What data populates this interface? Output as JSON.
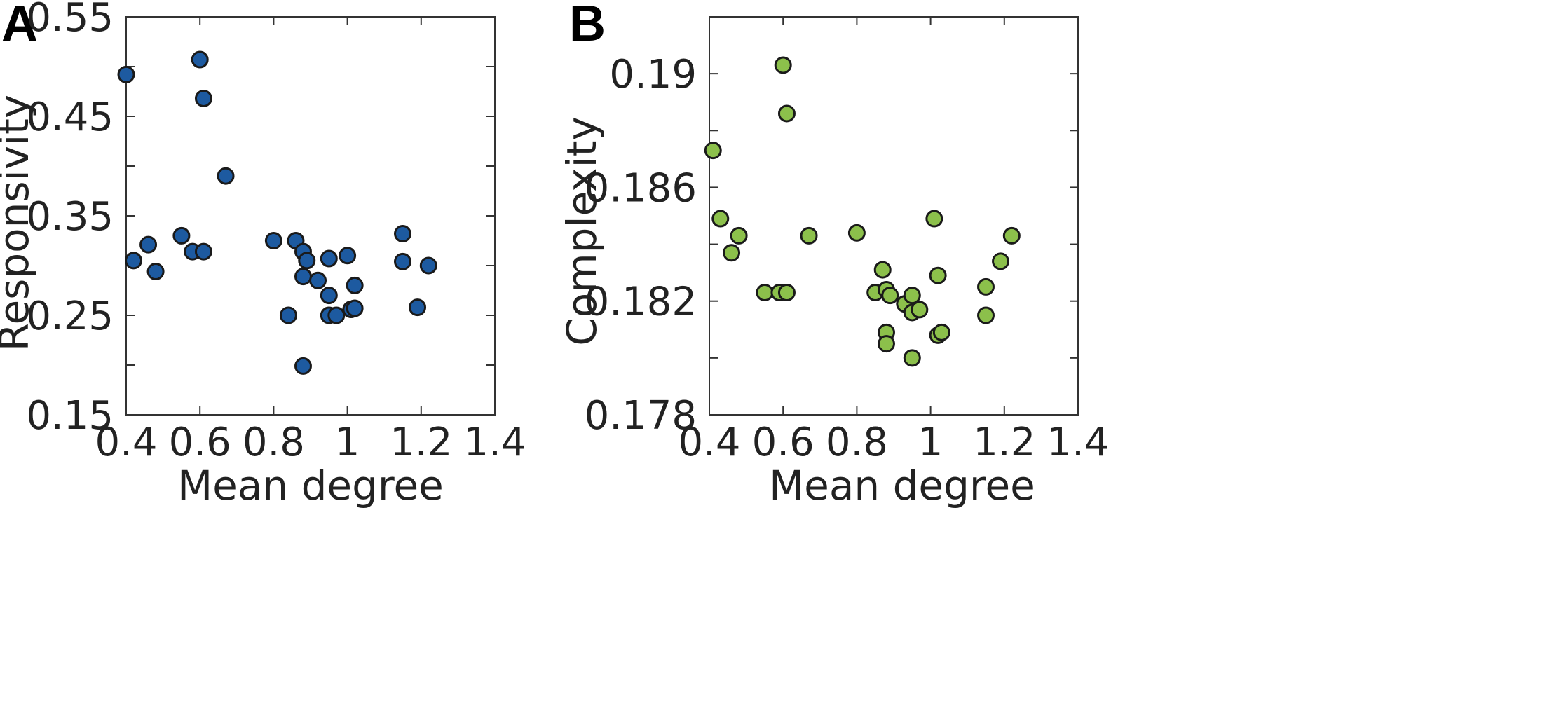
{
  "chart_data": [
    {
      "type": "scatter",
      "panel_label": "A",
      "xlabel": "Mean degree",
      "ylabel": "Responsivity",
      "xlim": [
        0.4,
        1.4
      ],
      "ylim": [
        0.15,
        0.55
      ],
      "xticks": [
        0.4,
        0.6,
        0.8,
        1.0,
        1.2,
        1.4
      ],
      "xtick_labels": [
        "0.4",
        "0.6",
        "0.8",
        "1",
        "1.2",
        "1.4"
      ],
      "yticks": [
        0.15,
        0.2,
        0.25,
        0.3,
        0.35,
        0.4,
        0.45,
        0.5,
        0.55
      ],
      "ytick_labels": [
        "0.15",
        "",
        "0.25",
        "",
        "0.35",
        "",
        "0.45",
        "",
        "0.55"
      ],
      "marker_color": "#1d5aa0",
      "x": [
        0.4,
        0.42,
        0.46,
        0.48,
        0.55,
        0.58,
        0.6,
        0.61,
        0.61,
        0.67,
        0.8,
        0.86,
        0.88,
        0.88,
        0.89,
        0.84,
        0.88,
        0.92,
        0.95,
        0.95,
        0.95,
        0.97,
        1.0,
        1.01,
        1.02,
        1.02,
        1.15,
        1.15,
        1.19,
        1.22
      ],
      "y": [
        0.492,
        0.305,
        0.321,
        0.294,
        0.33,
        0.314,
        0.507,
        0.468,
        0.314,
        0.39,
        0.325,
        0.325,
        0.314,
        0.289,
        0.305,
        0.25,
        0.199,
        0.285,
        0.27,
        0.25,
        0.307,
        0.25,
        0.31,
        0.256,
        0.28,
        0.257,
        0.332,
        0.304,
        0.258,
        0.3
      ]
    },
    {
      "type": "scatter",
      "panel_label": "B",
      "xlabel": "Mean degree",
      "ylabel": "Complexity",
      "xlim": [
        0.4,
        1.4
      ],
      "ylim": [
        0.178,
        0.192
      ],
      "xticks": [
        0.4,
        0.6,
        0.8,
        1.0,
        1.2,
        1.4
      ],
      "xtick_labels": [
        "0.4",
        "0.6",
        "0.8",
        "1",
        "1.2",
        "1.4"
      ],
      "yticks": [
        0.178,
        0.18,
        0.182,
        0.184,
        0.186,
        0.188,
        0.19
      ],
      "ytick_labels": [
        "0.178",
        "",
        "0.182",
        "",
        "0.186",
        "",
        "0.19"
      ],
      "marker_color": "#8cc04b",
      "x": [
        0.41,
        0.43,
        0.46,
        0.48,
        0.55,
        0.59,
        0.61,
        0.6,
        0.61,
        0.67,
        0.8,
        0.85,
        0.87,
        0.88,
        0.89,
        0.88,
        0.88,
        0.93,
        0.95,
        0.95,
        0.95,
        0.97,
        1.01,
        1.02,
        1.02,
        1.03,
        1.15,
        1.15,
        1.19,
        1.22
      ],
      "y": [
        0.1873,
        0.1849,
        0.1837,
        0.1843,
        0.1823,
        0.1823,
        0.1823,
        0.1903,
        0.1886,
        0.1843,
        0.1844,
        0.1823,
        0.1831,
        0.1824,
        0.1822,
        0.1809,
        0.1805,
        0.1819,
        0.1822,
        0.1816,
        0.18,
        0.1817,
        0.1849,
        0.1829,
        0.1808,
        0.1809,
        0.1825,
        0.1815,
        0.1834,
        0.1843
      ]
    }
  ]
}
